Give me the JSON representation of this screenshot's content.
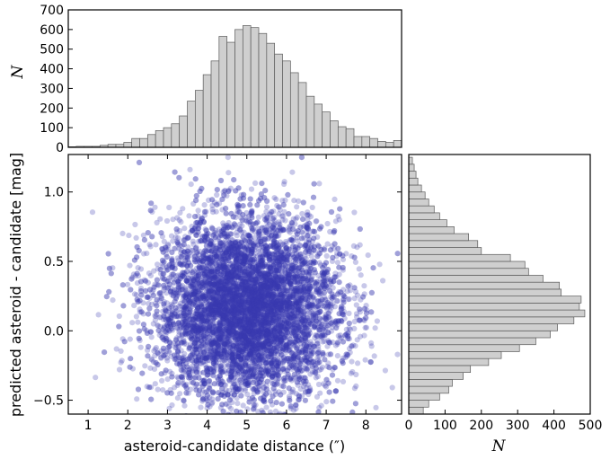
{
  "chart_data": [
    {
      "type": "bar",
      "panel": "top-histogram",
      "ylabel": "N",
      "ylim": [
        0,
        700
      ],
      "xlim": [
        0.5,
        8.9
      ],
      "yticks": [
        "0",
        "100",
        "200",
        "300",
        "400",
        "500",
        "600",
        "700"
      ],
      "bin_width": 0.2,
      "bins": [
        {
          "x0": 0.5,
          "count": 3
        },
        {
          "x0": 0.7,
          "count": 5
        },
        {
          "x0": 0.9,
          "count": 5
        },
        {
          "x0": 1.1,
          "count": 5
        },
        {
          "x0": 1.3,
          "count": 10
        },
        {
          "x0": 1.5,
          "count": 15
        },
        {
          "x0": 1.7,
          "count": 15
        },
        {
          "x0": 1.9,
          "count": 25
        },
        {
          "x0": 2.1,
          "count": 45
        },
        {
          "x0": 2.3,
          "count": 45
        },
        {
          "x0": 2.5,
          "count": 65
        },
        {
          "x0": 2.7,
          "count": 85
        },
        {
          "x0": 2.9,
          "count": 100
        },
        {
          "x0": 3.1,
          "count": 120
        },
        {
          "x0": 3.3,
          "count": 160
        },
        {
          "x0": 3.5,
          "count": 235
        },
        {
          "x0": 3.7,
          "count": 290
        },
        {
          "x0": 3.9,
          "count": 370
        },
        {
          "x0": 4.1,
          "count": 440
        },
        {
          "x0": 4.3,
          "count": 565
        },
        {
          "x0": 4.5,
          "count": 535
        },
        {
          "x0": 4.7,
          "count": 600
        },
        {
          "x0": 4.9,
          "count": 620
        },
        {
          "x0": 5.1,
          "count": 610
        },
        {
          "x0": 5.3,
          "count": 580
        },
        {
          "x0": 5.5,
          "count": 530
        },
        {
          "x0": 5.7,
          "count": 475
        },
        {
          "x0": 5.9,
          "count": 440
        },
        {
          "x0": 6.1,
          "count": 380
        },
        {
          "x0": 6.3,
          "count": 330
        },
        {
          "x0": 6.5,
          "count": 260
        },
        {
          "x0": 6.7,
          "count": 220
        },
        {
          "x0": 6.9,
          "count": 180
        },
        {
          "x0": 7.1,
          "count": 135
        },
        {
          "x0": 7.3,
          "count": 105
        },
        {
          "x0": 7.5,
          "count": 95
        },
        {
          "x0": 7.7,
          "count": 55
        },
        {
          "x0": 7.9,
          "count": 55
        },
        {
          "x0": 8.1,
          "count": 45
        },
        {
          "x0": 8.3,
          "count": 30
        },
        {
          "x0": 8.5,
          "count": 25
        },
        {
          "x0": 8.7,
          "count": 35
        }
      ]
    },
    {
      "type": "scatter",
      "panel": "main-scatter",
      "xlabel": "asteroid-candidate distance (″)",
      "ylabel": "predicted asteroid - candidate [mag]",
      "xlim": [
        0.5,
        8.9
      ],
      "ylim": [
        -0.6,
        1.27
      ],
      "xticks": [
        "1",
        "2",
        "3",
        "4",
        "5",
        "6",
        "7",
        "8"
      ],
      "yticks": [
        "−0.5",
        "0.0",
        "0.5",
        "1.0"
      ],
      "color": "#3b3bb0",
      "marker_alpha": 0.28,
      "n_points": 8000,
      "distribution": {
        "x_mean": 5.0,
        "x_std": 1.15,
        "y_mean": 0.16,
        "y_std": 0.33,
        "description_of_density": "dense blob centered near (5.0, 0.15)"
      }
    },
    {
      "type": "bar",
      "orientation": "horizontal",
      "panel": "right-histogram",
      "xlabel": "N",
      "xlim": [
        0,
        500
      ],
      "xticks": [
        "0",
        "100",
        "200",
        "300",
        "400",
        "500"
      ],
      "bin_width": 0.05,
      "bins": [
        {
          "y0": -0.6,
          "count": 40
        },
        {
          "y0": -0.55,
          "count": 55
        },
        {
          "y0": -0.5,
          "count": 85
        },
        {
          "y0": -0.45,
          "count": 110
        },
        {
          "y0": -0.4,
          "count": 120
        },
        {
          "y0": -0.35,
          "count": 150
        },
        {
          "y0": -0.3,
          "count": 170
        },
        {
          "y0": -0.25,
          "count": 220
        },
        {
          "y0": -0.2,
          "count": 255
        },
        {
          "y0": -0.15,
          "count": 305
        },
        {
          "y0": -0.1,
          "count": 350
        },
        {
          "y0": -0.05,
          "count": 390
        },
        {
          "y0": 0.0,
          "count": 410
        },
        {
          "y0": 0.05,
          "count": 455
        },
        {
          "y0": 0.1,
          "count": 485
        },
        {
          "y0": 0.15,
          "count": 470
        },
        {
          "y0": 0.2,
          "count": 475
        },
        {
          "y0": 0.25,
          "count": 420
        },
        {
          "y0": 0.3,
          "count": 415
        },
        {
          "y0": 0.35,
          "count": 370
        },
        {
          "y0": 0.4,
          "count": 330
        },
        {
          "y0": 0.45,
          "count": 320
        },
        {
          "y0": 0.5,
          "count": 280
        },
        {
          "y0": 0.55,
          "count": 200
        },
        {
          "y0": 0.6,
          "count": 190
        },
        {
          "y0": 0.65,
          "count": 165
        },
        {
          "y0": 0.7,
          "count": 125
        },
        {
          "y0": 0.75,
          "count": 105
        },
        {
          "y0": 0.8,
          "count": 85
        },
        {
          "y0": 0.85,
          "count": 70
        },
        {
          "y0": 0.9,
          "count": 55
        },
        {
          "y0": 0.95,
          "count": 45
        },
        {
          "y0": 1.0,
          "count": 35
        },
        {
          "y0": 1.05,
          "count": 25
        },
        {
          "y0": 1.1,
          "count": 20
        },
        {
          "y0": 1.15,
          "count": 15
        },
        {
          "y0": 1.2,
          "count": 10
        }
      ]
    }
  ],
  "colors": {
    "hist_fill": "#cfcfcf",
    "hist_stroke": "#5a5a5a",
    "scatter_point": "#3b3bb0",
    "axes": "#000000"
  }
}
